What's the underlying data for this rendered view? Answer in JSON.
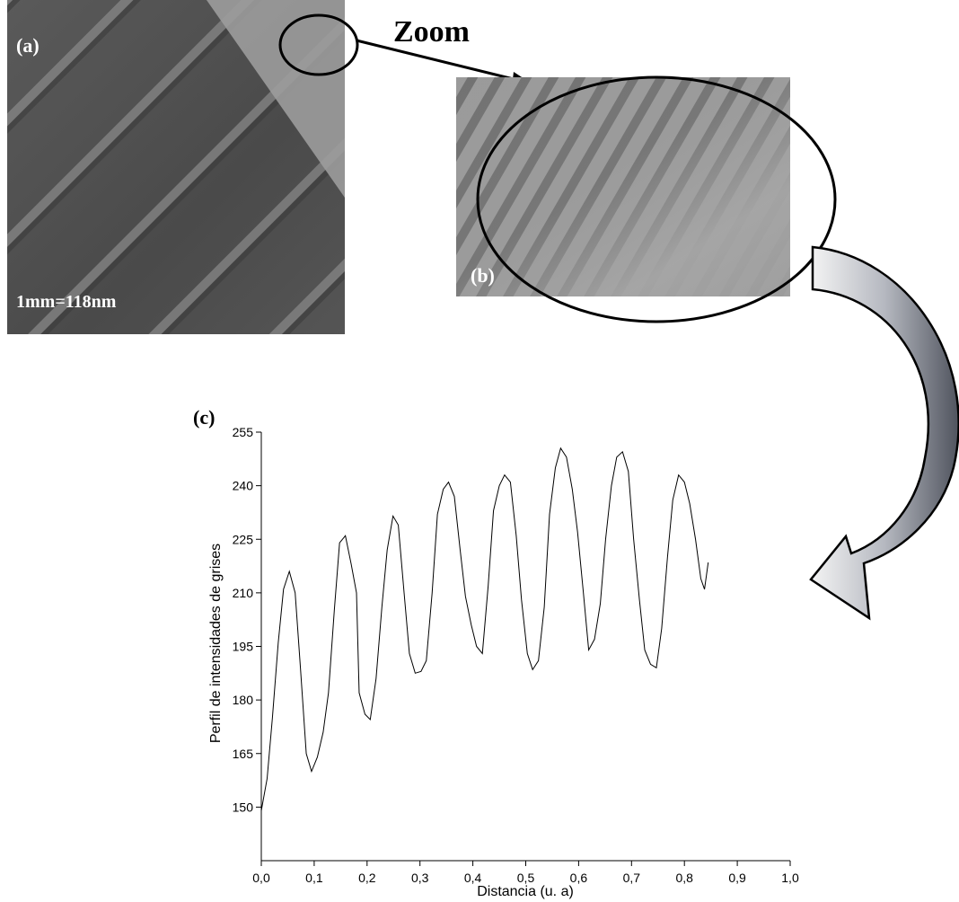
{
  "panels": {
    "a": {
      "label": "(a)",
      "scale": "1mm=118nm"
    },
    "b": {
      "label": "(b)"
    },
    "zoom": "Zoom"
  },
  "chart_data": {
    "type": "line",
    "title": "(c)",
    "xlabel": "Distancia (u. a)",
    "ylabel": "Perfil de intensidades de grises",
    "color": "#000000",
    "x": [
      0.0,
      0.011,
      0.021,
      0.032,
      0.042,
      0.053,
      0.064,
      0.074,
      0.085,
      0.095,
      0.106,
      0.117,
      0.127,
      0.138,
      0.148,
      0.159,
      0.17,
      0.18,
      0.185,
      0.196,
      0.206,
      0.217,
      0.228,
      0.238,
      0.249,
      0.259,
      0.27,
      0.28,
      0.291,
      0.302,
      0.312,
      0.323,
      0.333,
      0.344,
      0.354,
      0.365,
      0.376,
      0.386,
      0.397,
      0.407,
      0.418,
      0.429,
      0.439,
      0.45,
      0.46,
      0.471,
      0.482,
      0.492,
      0.503,
      0.513,
      0.524,
      0.535,
      0.545,
      0.556,
      0.566,
      0.577,
      0.588,
      0.598,
      0.609,
      0.619,
      0.63,
      0.641,
      0.651,
      0.662,
      0.672,
      0.683,
      0.694,
      0.704,
      0.715,
      0.725,
      0.736,
      0.747,
      0.757,
      0.768,
      0.778,
      0.789,
      0.8,
      0.81,
      0.821,
      0.831,
      0.838,
      0.845
    ],
    "values": [
      149,
      158,
      175,
      196,
      211,
      216,
      210,
      189,
      165,
      160,
      164,
      171,
      182,
      205,
      224,
      226,
      218,
      210,
      182,
      176,
      174.5,
      186,
      206,
      222,
      231.5,
      229,
      210,
      193,
      187.5,
      188,
      191,
      210,
      232,
      239,
      241,
      237,
      222,
      209,
      201,
      195,
      193,
      212,
      233,
      240,
      243,
      241,
      226,
      208,
      193,
      188.5,
      191,
      206,
      232,
      245,
      250.5,
      248,
      239,
      227,
      210,
      194,
      197,
      207,
      225,
      240,
      248,
      249.5,
      244,
      225,
      208,
      194,
      190,
      189,
      200,
      220,
      236,
      243,
      241,
      235,
      225,
      214,
      211,
      218.5
    ],
    "xlim": [
      0,
      1
    ],
    "ylim": [
      135,
      255
    ],
    "xticks": [
      {
        "value": 0,
        "label": "0,0"
      },
      {
        "value": 0.1,
        "label": "0,1"
      },
      {
        "value": 0.2,
        "label": "0,2"
      },
      {
        "value": 0.3,
        "label": "0,3"
      },
      {
        "value": 0.4,
        "label": "0,4"
      },
      {
        "value": 0.5,
        "label": "0,5"
      },
      {
        "value": 0.6,
        "label": "0,6"
      },
      {
        "value": 0.7,
        "label": "0,7"
      },
      {
        "value": 0.8,
        "label": "0,8"
      },
      {
        "value": 0.9,
        "label": "0,9"
      },
      {
        "value": 1,
        "label": "1,0"
      }
    ],
    "yticks": [
      150,
      165,
      180,
      195,
      210,
      225,
      240,
      255
    ]
  }
}
